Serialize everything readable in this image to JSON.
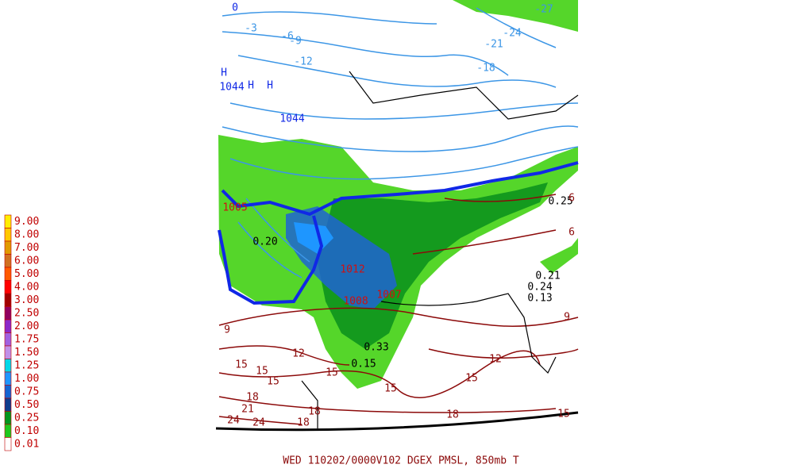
{
  "legend": {
    "items": [
      {
        "label": "9.00",
        "color": "#ffee00"
      },
      {
        "label": "8.00",
        "color": "#ffc800"
      },
      {
        "label": "7.00",
        "color": "#e09a00"
      },
      {
        "label": "6.00",
        "color": "#d07020"
      },
      {
        "label": "5.00",
        "color": "#ff5a00"
      },
      {
        "label": "4.00",
        "color": "#ff0000"
      },
      {
        "label": "3.00",
        "color": "#a00000"
      },
      {
        "label": "2.50",
        "color": "#900060"
      },
      {
        "label": "2.00",
        "color": "#8a28c8"
      },
      {
        "label": "1.75",
        "color": "#a060e0"
      },
      {
        "label": "1.50",
        "color": "#c090e8"
      },
      {
        "label": "1.25",
        "color": "#00d8e8"
      },
      {
        "label": "1.00",
        "color": "#1e96ff"
      },
      {
        "label": "0.75",
        "color": "#1464d2"
      },
      {
        "label": "0.50",
        "color": "#103c8c"
      },
      {
        "label": "0.25",
        "color": "#00961e"
      },
      {
        "label": "0.10",
        "color": "#1ec81e"
      },
      {
        "label": "0.01",
        "color": "#ffffff"
      }
    ]
  },
  "map": {
    "labels": [
      "0",
      "-3",
      "-6",
      "-9",
      "-12",
      "-18",
      "-21",
      "-24",
      "-27",
      "H",
      "H",
      "H",
      "1044",
      "1044",
      "1005",
      "1012",
      "1008",
      "1007",
      "0.20",
      "0.25",
      "0.21",
      "0.24",
      "0.13",
      "0.33",
      "0.15",
      "9",
      "9",
      "12",
      "12",
      "15",
      "15",
      "15",
      "15",
      "15",
      "15",
      "15",
      "18",
      "18",
      "18",
      "18",
      "21",
      "24",
      "24",
      "6",
      "6"
    ]
  },
  "footer": {
    "text": "WED 110202/0000V102  DGEX PMSL, 850mb T"
  }
}
